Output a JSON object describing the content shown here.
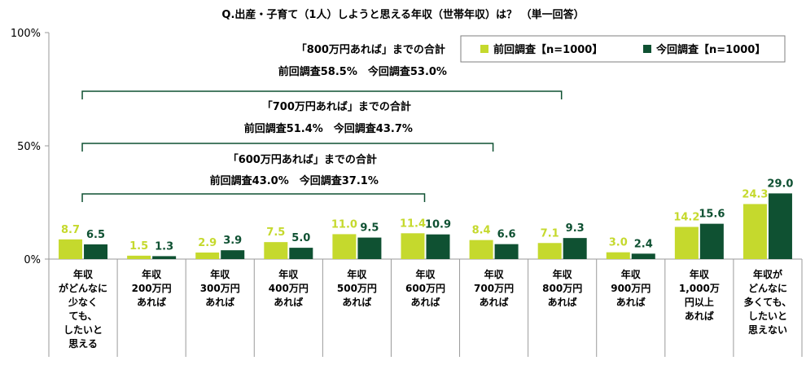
{
  "chart_data": {
    "type": "bar",
    "title": "Q.出産・子育て（1人）しようと思える年収（世帯年収）は？ （単一回答）",
    "y_ticks": [
      "100%",
      "50%",
      "0%"
    ],
    "ylim": [
      0,
      100
    ],
    "grid": false,
    "legend_position": "top-right",
    "categories": [
      [
        "年収",
        "がどんなに",
        "少なく",
        "ても、",
        "したいと",
        "思える"
      ],
      [
        "年収",
        "200万円",
        "あれば"
      ],
      [
        "年収",
        "300万円",
        "あれば"
      ],
      [
        "年収",
        "400万円",
        "あれば"
      ],
      [
        "年収",
        "500万円",
        "あれば"
      ],
      [
        "年収",
        "600万円",
        "あれば"
      ],
      [
        "年収",
        "700万円",
        "あれば"
      ],
      [
        "年収",
        "800万円",
        "あれば"
      ],
      [
        "年収",
        "900万円",
        "あれば"
      ],
      [
        "年収",
        "1,000万",
        "円以上",
        "あれば"
      ],
      [
        "年収が",
        "どんなに",
        "多くても、",
        "したいと",
        "思えない"
      ]
    ],
    "series": [
      {
        "name": "前回調査【n=1000】",
        "color": "#c5d92d",
        "values": [
          8.7,
          1.5,
          2.9,
          7.5,
          11.0,
          11.4,
          8.4,
          7.1,
          3.0,
          14.2,
          24.3
        ]
      },
      {
        "name": "今回調査【n=1000】",
        "color": "#0f5132",
        "values": [
          6.5,
          1.3,
          3.9,
          5.0,
          9.5,
          10.9,
          6.6,
          9.3,
          2.4,
          15.6,
          29.0
        ]
      }
    ],
    "annotations": [
      {
        "title": "「800万円あれば」までの合計",
        "detail": "前回調査58.5%　今回調査53.0%",
        "end_category": 7
      },
      {
        "title": "「700万円あれば」までの合計",
        "detail": "前回調査51.4%　今回調査43.7%",
        "end_category": 6
      },
      {
        "title": "「600万円あれば」までの合計",
        "detail": "前回調査43.0%　今回調査37.1%",
        "end_category": 5
      }
    ]
  }
}
